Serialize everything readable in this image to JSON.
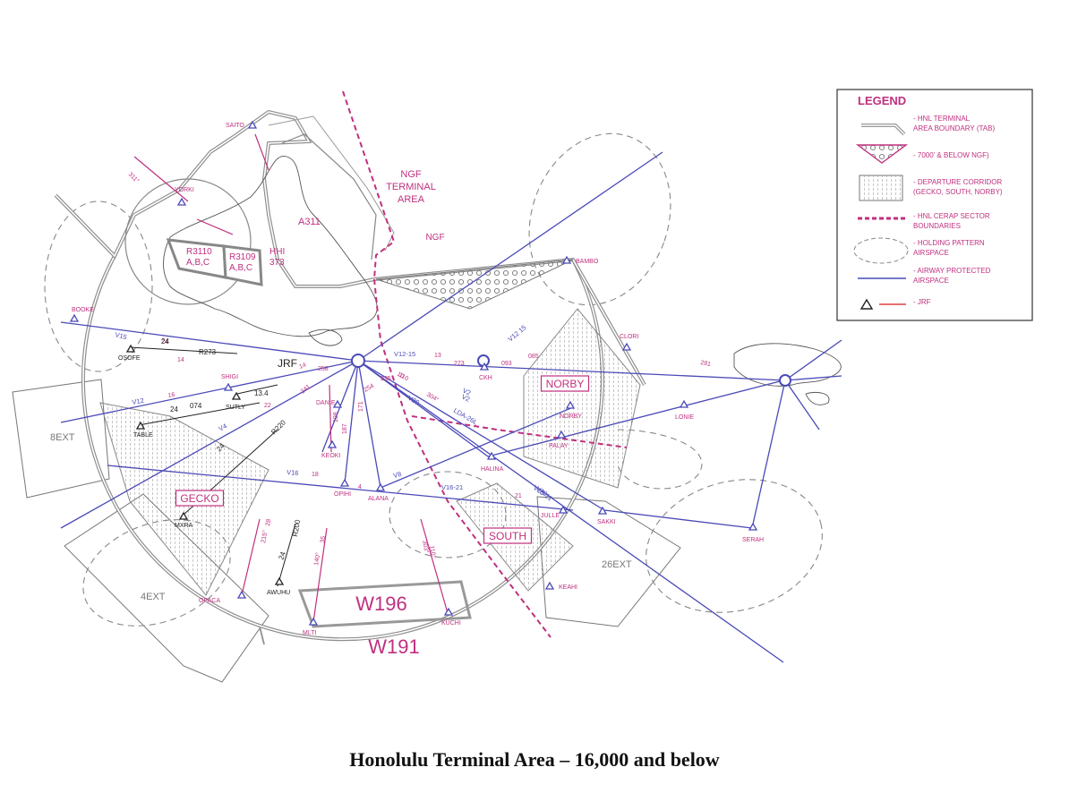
{
  "caption": "Honolulu Terminal Area – 16,000 and below",
  "colors": {
    "airway": "#4a4ab8",
    "magenta": "#c0307f",
    "boundary": "#8f8f8f",
    "coast": "#555555",
    "holding": "#7a7a7a",
    "sector": "#c0307f",
    "jrf": "#222222"
  },
  "legend": {
    "title": "LEGEND",
    "items": [
      {
        "icon": "tab-boundary-icon",
        "text": [
          "- HNL TERMINAL",
          "AREA BOUNDARY (TAB)"
        ]
      },
      {
        "icon": "ngf-triangle-icon",
        "text": [
          "- 7000' & BELOW NGF)"
        ]
      },
      {
        "icon": "departure-corridor-icon",
        "text": [
          "- DEPARTURE CORRIDOR",
          "(GECKO, SOUTH, NORBY)"
        ]
      },
      {
        "icon": "sector-boundary-icon",
        "text": [
          "- HNL CERAP SECTOR",
          "BOUNDARIES"
        ]
      },
      {
        "icon": "holding-pattern-icon",
        "text": [
          "- HOLDING PATTERN",
          "AIRSPACE"
        ]
      },
      {
        "icon": "airway-line-icon",
        "text": [
          "- AIRWAY PROTECTED",
          "AIRSPACE"
        ]
      },
      {
        "icon": "jrf-symbol-icon",
        "text": [
          "- JRF"
        ]
      }
    ]
  },
  "areas": {
    "ngf_terminal": [
      "NGF",
      "TERMINAL",
      "AREA"
    ],
    "ngf": "NGF",
    "a311": "A311",
    "r3110": [
      "R3110",
      "A,B,C"
    ],
    "r3109": [
      "R3109",
      "A,B,C"
    ],
    "hhi": [
      "HHI",
      "373"
    ],
    "w196": "W196",
    "w191": "W191",
    "ext8": "8EXT",
    "ext4": "4EXT",
    "ext26": "26EXT",
    "jrf": "JRF"
  },
  "corridors": {
    "gecko": "GECKO",
    "south": "SOUTH",
    "norby": "NORBY"
  },
  "fixes": [
    {
      "name": "SAITO",
      "kind": "airspace"
    },
    {
      "name": "YORKI",
      "kind": "airspace"
    },
    {
      "name": "BOOKE",
      "kind": "airspace"
    },
    {
      "name": "OSOFE",
      "kind": "jrf"
    },
    {
      "name": "SHIGI",
      "kind": "airspace"
    },
    {
      "name": "SUTLY",
      "kind": "jrf"
    },
    {
      "name": "TABLE",
      "kind": "jrf"
    },
    {
      "name": "MXRA",
      "kind": "jrf"
    },
    {
      "name": "DANIE",
      "kind": "airspace"
    },
    {
      "name": "KEOKI",
      "kind": "airspace"
    },
    {
      "name": "OPIHI",
      "kind": "airspace"
    },
    {
      "name": "ALANA",
      "kind": "airspace"
    },
    {
      "name": "HALINA",
      "kind": "airspace"
    },
    {
      "name": "BAMBO",
      "kind": "airspace"
    },
    {
      "name": "CKH",
      "kind": "airspace"
    },
    {
      "name": "CLORI",
      "kind": "airspace"
    },
    {
      "name": "LONIE",
      "kind": "airspace"
    },
    {
      "name": "PALAY",
      "kind": "airspace"
    },
    {
      "name": "NORBY",
      "kind": "airspace"
    },
    {
      "name": "JULLE",
      "kind": "airspace"
    },
    {
      "name": "SAKKI",
      "kind": "airspace"
    },
    {
      "name": "SERAH",
      "kind": "airspace"
    },
    {
      "name": "KEAHI",
      "kind": "airspace"
    },
    {
      "name": "KUCHI",
      "kind": "airspace"
    },
    {
      "name": "MLTI",
      "kind": "airspace"
    },
    {
      "name": "AWUHU",
      "kind": "jrf"
    },
    {
      "name": "OPACA",
      "kind": "airspace"
    }
  ],
  "airway_labels": [
    "V15",
    "V12",
    "V4",
    "V16",
    "V8",
    "V12-15",
    "V2",
    "V20",
    "LDA-26L",
    "V16-21",
    "V15-21",
    "V12 15",
    "V20",
    "V2"
  ],
  "magenta_numbers": [
    "24",
    "16",
    "13",
    "273",
    "093",
    "085",
    "281",
    "10",
    "21",
    "14",
    "18",
    "4",
    "254",
    "171",
    "198",
    "187",
    "241",
    "258",
    "235",
    "110",
    "304°",
    "303°",
    "311°",
    "28",
    "35",
    "140°",
    "110°",
    "215°",
    "14",
    "22"
  ],
  "black_numbers": [
    "24",
    "R273",
    "24",
    "074",
    "13.4",
    "24",
    "R220",
    "24",
    "R200"
  ]
}
